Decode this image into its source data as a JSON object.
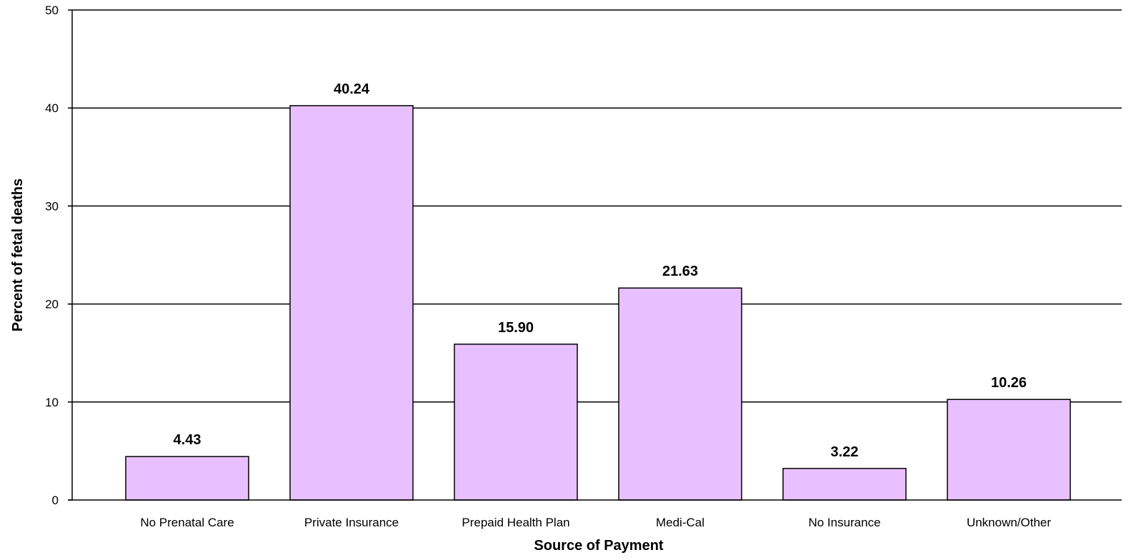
{
  "chart_data": {
    "type": "bar",
    "title": "",
    "xlabel": "Source of Payment",
    "ylabel": "Percent of fetal deaths",
    "categories": [
      "No Prenatal Care",
      "Private Insurance",
      "Prepaid Health Plan",
      "Medi-Cal",
      "No Insurance",
      "Unknown/Other"
    ],
    "values": [
      4.43,
      40.24,
      15.9,
      21.63,
      3.22,
      10.26
    ],
    "data_labels": [
      "4.43",
      "40.24",
      "15.90",
      "21.63",
      "3.22",
      "10.26"
    ],
    "ylim": [
      0,
      50
    ],
    "yticks": [
      0,
      10,
      20,
      30,
      40,
      50
    ],
    "ytick_labels": [
      "0",
      "10",
      "20",
      "30",
      "40",
      "50"
    ],
    "grid": true,
    "legend": "none",
    "colors": {
      "bar_fill": "#E9C0FF",
      "bar_stroke": "#000000",
      "grid": "#000000",
      "text": "#000000"
    }
  }
}
